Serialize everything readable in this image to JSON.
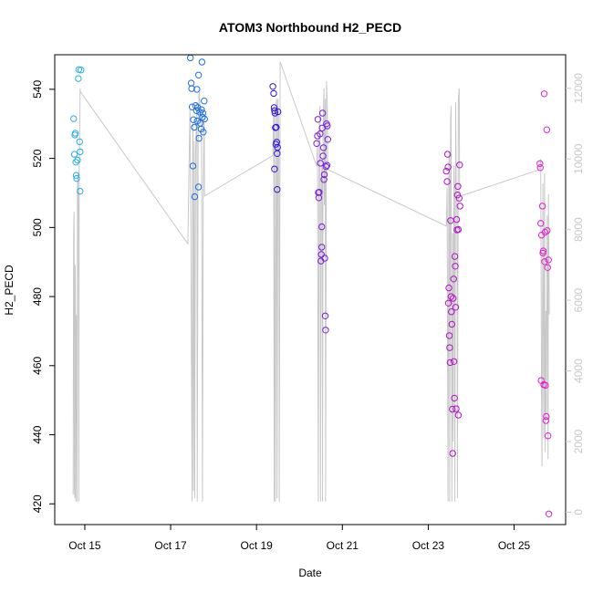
{
  "chart_data": {
    "type": "scatter",
    "title": "ATOM3 Northbound H2_PECD",
    "xlabel": "Date",
    "ylabel": "H2_PECD",
    "x_ticks": [
      "Oct 15",
      "Oct 17",
      "Oct 19",
      "Oct 21",
      "Oct 23",
      "Oct 25"
    ],
    "x_tick_days": [
      15,
      17,
      19,
      21,
      23,
      25
    ],
    "xlim_days": [
      14.3,
      26.2
    ],
    "ylim": [
      414,
      550
    ],
    "y_ticks": [
      420,
      440,
      460,
      480,
      500,
      520,
      540
    ],
    "y2_ticks": [
      0,
      2000,
      4000,
      6000,
      8000,
      10000,
      12000
    ],
    "y2lim": [
      -350,
      12950
    ],
    "grid": false,
    "altitude_color": "#c8c8c8",
    "series": [
      {
        "color": "#29aee6",
        "points": [
          [
            14.74,
            531.5
          ],
          [
            14.76,
            521.2
          ],
          [
            14.77,
            526.8
          ],
          [
            14.78,
            527.3
          ],
          [
            14.79,
            518.9
          ],
          [
            14.8,
            515.1
          ],
          [
            14.81,
            514.2
          ],
          [
            14.83,
            519.5
          ],
          [
            14.85,
            543.1
          ],
          [
            14.86,
            545.7
          ],
          [
            14.88,
            524.8
          ],
          [
            14.89,
            521.9
          ],
          [
            14.89,
            510.5
          ],
          [
            14.91,
            545.6
          ]
        ]
      },
      {
        "color": "#1f6fe0",
        "points": [
          [
            17.46,
            549.1
          ],
          [
            17.48,
            541.8
          ],
          [
            17.49,
            540.2
          ],
          [
            17.5,
            534.9
          ],
          [
            17.52,
            517.8
          ],
          [
            17.53,
            531.2
          ],
          [
            17.55,
            529.0
          ],
          [
            17.56,
            508.9
          ],
          [
            17.58,
            535.3
          ],
          [
            17.6,
            533.8
          ],
          [
            17.61,
            540.0
          ],
          [
            17.62,
            530.8
          ],
          [
            17.63,
            534.7
          ],
          [
            17.65,
            544.1
          ],
          [
            17.65,
            511.7
          ],
          [
            17.66,
            525.8
          ],
          [
            17.68,
            533.4
          ],
          [
            17.69,
            530.2
          ],
          [
            17.71,
            528.5
          ],
          [
            17.72,
            534.1
          ],
          [
            17.73,
            547.9
          ],
          [
            17.74,
            531.9
          ],
          [
            17.75,
            533.1
          ],
          [
            17.76,
            527.6
          ],
          [
            17.78,
            536.6
          ],
          [
            17.79,
            531.4
          ]
        ]
      },
      {
        "color": "#3316d9",
        "points": [
          [
            19.38,
            540.8
          ],
          [
            19.4,
            538.8
          ],
          [
            19.41,
            534.7
          ],
          [
            19.42,
            533.8
          ],
          [
            19.42,
            516.9
          ],
          [
            19.43,
            533.1
          ],
          [
            19.44,
            528.9
          ],
          [
            19.45,
            524.1
          ],
          [
            19.46,
            529.0
          ],
          [
            19.47,
            524.7
          ],
          [
            19.48,
            521.4
          ],
          [
            19.48,
            511.0
          ],
          [
            19.49,
            523.2
          ],
          [
            19.5,
            533.5
          ]
        ]
      },
      {
        "color": "#7a1fd6",
        "points": [
          [
            20.4,
            524.3
          ],
          [
            20.42,
            526.5
          ],
          [
            20.43,
            531.3
          ],
          [
            20.44,
            510.1
          ],
          [
            20.45,
            508.6
          ],
          [
            20.46,
            510.2
          ],
          [
            20.48,
            527.1
          ],
          [
            20.49,
            518.6
          ],
          [
            20.5,
            490.3
          ],
          [
            20.51,
            492.2
          ],
          [
            20.52,
            494.3
          ],
          [
            20.52,
            500.2
          ],
          [
            20.53,
            528.8
          ],
          [
            20.54,
            533.1
          ],
          [
            20.55,
            520.7
          ],
          [
            20.56,
            523.1
          ],
          [
            20.57,
            513.9
          ],
          [
            20.58,
            515.3
          ],
          [
            20.59,
            491.1
          ],
          [
            20.6,
            474.4
          ],
          [
            20.61,
            470.3
          ],
          [
            20.62,
            517.6
          ],
          [
            20.63,
            530.0
          ],
          [
            20.64,
            518.0
          ],
          [
            20.65,
            529.4
          ],
          [
            20.66,
            525.5
          ]
        ]
      },
      {
        "color": "#b214c8",
        "points": [
          [
            23.42,
            516.3
          ],
          [
            23.44,
            513.3
          ],
          [
            23.45,
            521.2
          ],
          [
            23.46,
            517.5
          ],
          [
            23.47,
            478.1
          ],
          [
            23.48,
            482.5
          ],
          [
            23.49,
            468.7
          ],
          [
            23.5,
            465.2
          ],
          [
            23.51,
            460.9
          ],
          [
            23.52,
            502.0
          ],
          [
            23.53,
            480.0
          ],
          [
            23.54,
            475.6
          ],
          [
            23.55,
            472.0
          ],
          [
            23.56,
            447.4
          ],
          [
            23.57,
            434.6
          ],
          [
            23.58,
            479.5
          ],
          [
            23.59,
            485.1
          ],
          [
            23.6,
            461.2
          ],
          [
            23.61,
            450.6
          ],
          [
            23.62,
            491.6
          ],
          [
            23.63,
            488.8
          ],
          [
            23.64,
            476.9
          ],
          [
            23.65,
            447.5
          ],
          [
            23.66,
            502.3
          ],
          [
            23.67,
            499.3
          ],
          [
            23.68,
            509.4
          ],
          [
            23.69,
            511.9
          ],
          [
            23.7,
            499.4
          ],
          [
            23.7,
            445.7
          ],
          [
            23.72,
            508.5
          ],
          [
            23.73,
            518.1
          ],
          [
            23.74,
            506.2
          ]
        ]
      },
      {
        "color": "#e020d0",
        "points": [
          [
            25.6,
            518.5
          ],
          [
            25.61,
            517.3
          ],
          [
            25.62,
            501.2
          ],
          [
            25.63,
            455.7
          ],
          [
            25.64,
            497.8
          ],
          [
            25.66,
            506.2
          ],
          [
            25.67,
            492.6
          ],
          [
            25.68,
            493.2
          ],
          [
            25.69,
            454.5
          ],
          [
            25.7,
            538.7
          ],
          [
            25.71,
            490.1
          ],
          [
            25.72,
            498.6
          ],
          [
            25.73,
            454.3
          ],
          [
            25.74,
            444.1
          ],
          [
            25.75,
            445.3
          ],
          [
            25.76,
            528.3
          ],
          [
            25.77,
            499.1
          ],
          [
            25.78,
            488.4
          ],
          [
            25.79,
            439.7
          ],
          [
            25.8,
            490.6
          ],
          [
            25.81,
            417.1
          ]
        ]
      }
    ],
    "altitude_trace": [
      [
        14.73,
        500
      ],
      [
        14.74,
        7800
      ],
      [
        14.75,
        8500
      ],
      [
        14.76,
        600
      ],
      [
        14.77,
        400
      ],
      [
        14.775,
        7000
      ],
      [
        14.78,
        6600
      ],
      [
        14.79,
        300
      ],
      [
        14.8,
        5200
      ],
      [
        14.81,
        5600
      ],
      [
        14.82,
        300
      ],
      [
        14.83,
        9200
      ],
      [
        14.84,
        9600
      ],
      [
        14.85,
        8500
      ],
      [
        14.86,
        300
      ],
      [
        14.87,
        9700
      ],
      [
        14.88,
        10500
      ],
      [
        14.89,
        12000
      ],
      [
        14.9,
        11900
      ],
      [
        17.4,
        7600
      ],
      [
        17.45,
        11400
      ],
      [
        17.47,
        8200
      ],
      [
        17.48,
        5500
      ],
      [
        17.5,
        300
      ],
      [
        17.51,
        9800
      ],
      [
        17.52,
        11000
      ],
      [
        17.53,
        600
      ],
      [
        17.55,
        10500
      ],
      [
        17.56,
        400
      ],
      [
        17.58,
        10100
      ],
      [
        17.6,
        11100
      ],
      [
        17.61,
        11600
      ],
      [
        17.62,
        300
      ],
      [
        17.64,
        10800
      ],
      [
        17.66,
        11800
      ],
      [
        17.67,
        11900
      ],
      [
        17.7,
        11000
      ],
      [
        17.72,
        11200
      ],
      [
        17.74,
        300
      ],
      [
        17.76,
        9300
      ],
      [
        17.78,
        11200
      ],
      [
        17.79,
        8950
      ],
      [
        19.38,
        10100
      ],
      [
        19.4,
        11300
      ],
      [
        19.41,
        300
      ],
      [
        19.42,
        11500
      ],
      [
        19.44,
        300
      ],
      [
        19.46,
        11600
      ],
      [
        19.47,
        11700
      ],
      [
        19.48,
        400
      ],
      [
        19.5,
        11700
      ],
      [
        19.52,
        10700
      ],
      [
        19.53,
        300
      ],
      [
        19.55,
        12750
      ],
      [
        20.4,
        9800
      ],
      [
        20.42,
        10500
      ],
      [
        20.44,
        300
      ],
      [
        20.46,
        10800
      ],
      [
        20.48,
        11500
      ],
      [
        20.49,
        300
      ],
      [
        20.51,
        9400
      ],
      [
        20.53,
        10000
      ],
      [
        20.54,
        300
      ],
      [
        20.55,
        11000
      ],
      [
        20.57,
        12000
      ],
      [
        20.58,
        8700
      ],
      [
        20.6,
        11700
      ],
      [
        20.61,
        300
      ],
      [
        20.63,
        12200
      ],
      [
        20.65,
        11400
      ],
      [
        20.66,
        9700
      ],
      [
        23.42,
        8100
      ],
      [
        23.44,
        9200
      ],
      [
        23.46,
        300
      ],
      [
        23.48,
        9900
      ],
      [
        23.49,
        10200
      ],
      [
        23.5,
        300
      ],
      [
        23.52,
        11100
      ],
      [
        23.53,
        11500
      ],
      [
        23.55,
        300
      ],
      [
        23.57,
        7900
      ],
      [
        23.58,
        2000
      ],
      [
        23.6,
        9800
      ],
      [
        23.61,
        8900
      ],
      [
        23.62,
        300
      ],
      [
        23.64,
        11600
      ],
      [
        23.65,
        9400
      ],
      [
        23.67,
        8500
      ],
      [
        23.68,
        400
      ],
      [
        23.7,
        11700
      ],
      [
        23.72,
        12000
      ],
      [
        23.73,
        9000
      ],
      [
        23.75,
        8950
      ],
      [
        25.6,
        9700
      ],
      [
        25.62,
        10000
      ],
      [
        25.64,
        3300
      ],
      [
        25.65,
        1300
      ],
      [
        25.67,
        9300
      ],
      [
        25.69,
        2100
      ],
      [
        25.71,
        9600
      ],
      [
        25.72,
        1700
      ],
      [
        25.74,
        5700
      ],
      [
        25.75,
        2600
      ],
      [
        25.77,
        8400
      ],
      [
        25.78,
        6500
      ],
      [
        25.79,
        1500
      ],
      [
        25.8,
        9000
      ],
      [
        25.82,
        5600
      ]
    ]
  }
}
